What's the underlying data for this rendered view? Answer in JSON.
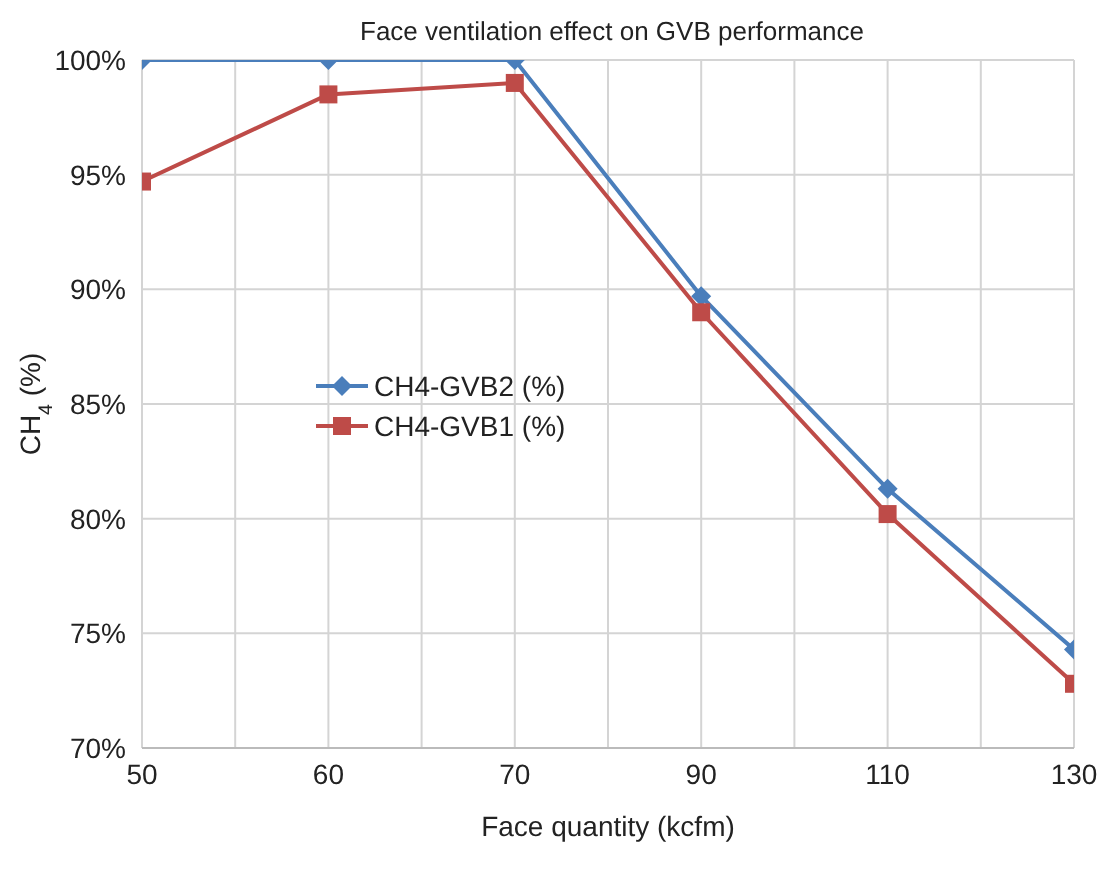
{
  "chart_data": {
    "type": "line",
    "title": "Face ventilation effect on GVB performance",
    "xlabel": "Face quantity (kcfm)",
    "ylabel": "CH$_{4}$ (%)",
    "categories": [
      "50",
      "60",
      "70",
      "90",
      "110",
      "130"
    ],
    "series": [
      {
        "name": "CH4-GVB2 (%)",
        "color": "#4a7ebb",
        "marker": "diamond",
        "values": [
          100,
          100,
          100,
          89.7,
          81.3,
          74.3
        ]
      },
      {
        "name": "CH4-GVB1 (%)",
        "color": "#be4b48",
        "marker": "square",
        "values": [
          94.7,
          98.5,
          99.0,
          89.0,
          80.2,
          72.8
        ]
      }
    ],
    "ylim": [
      70,
      100
    ],
    "yticks": [
      {
        "value": 70,
        "label": "70%"
      },
      {
        "value": 75,
        "label": "75%"
      },
      {
        "value": 80,
        "label": "80%"
      },
      {
        "value": 85,
        "label": "85%"
      },
      {
        "value": 90,
        "label": "90%"
      },
      {
        "value": 95,
        "label": "95%"
      },
      {
        "value": 100,
        "label": "100%"
      }
    ],
    "grid": true,
    "legend": "center left",
    "line_style": "solid"
  }
}
